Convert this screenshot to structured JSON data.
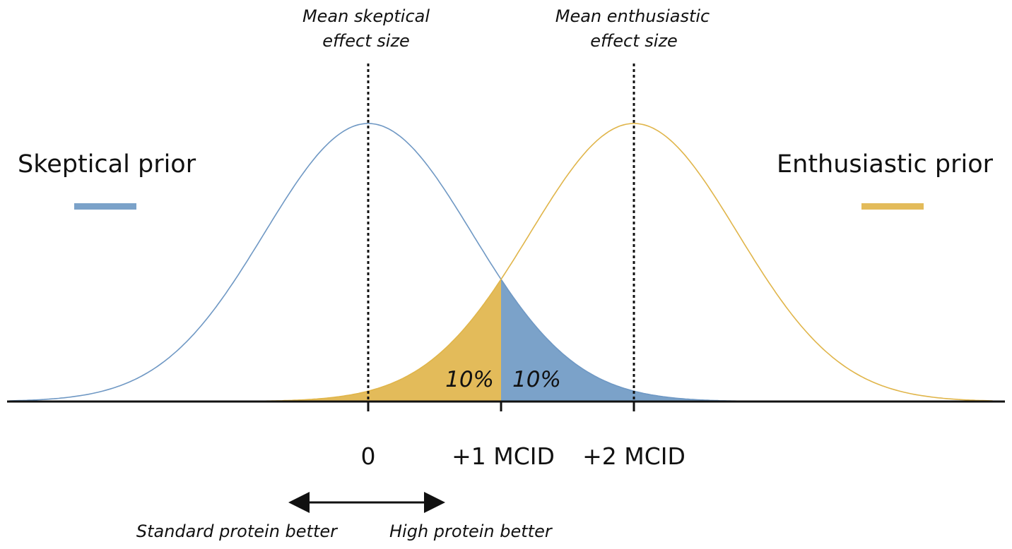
{
  "chart_data": {
    "type": "area",
    "series": [
      {
        "name": "Skeptical prior",
        "mean": 0,
        "color": "#7ba2c9",
        "line_color": "#6f98c4"
      },
      {
        "name": "Enthusiastic prior",
        "mean": 2,
        "color": "#e3bb5a",
        "line_color": "#e0b54a"
      }
    ],
    "x_units": "MCID",
    "xlim": [
      -2.7,
      4.7
    ],
    "x_ticks": [
      {
        "value": 0,
        "label": "0"
      },
      {
        "value": 1,
        "label": "+1 MCID"
      },
      {
        "value": 2,
        "label": "+2 MCID"
      }
    ],
    "reference_lines": [
      {
        "x": 0,
        "label_line1": "Mean skeptical",
        "label_line2": "effect size"
      },
      {
        "x": 2,
        "label_line1": "Mean enthusiastic",
        "label_line2": "effect size"
      }
    ],
    "shaded_regions": [
      {
        "series": "Enthusiastic prior",
        "from": "-inf",
        "to": 1,
        "label": "10%"
      },
      {
        "series": "Skeptical prior",
        "from": 1,
        "to": "+inf",
        "label": "10%"
      }
    ],
    "direction_arrow": {
      "left_label": "Standard protein better",
      "right_label": "High protein better"
    }
  }
}
